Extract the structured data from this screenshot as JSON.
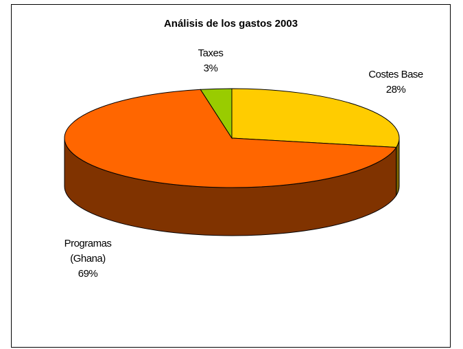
{
  "chart_data": {
    "type": "pie",
    "title": "Análisis de los gastos 2003",
    "slices": [
      {
        "label": "Costes Base",
        "label_lines": [
          "Costes Base"
        ],
        "percent_label": "28%",
        "value": 28,
        "color": "#FFCC00",
        "side_color": "#7F6600"
      },
      {
        "label": "Programas (Ghana)",
        "label_lines": [
          "Programas",
          "(Ghana)"
        ],
        "percent_label": "69%",
        "value": 69,
        "color": "#FF6600",
        "side_color": "#803300"
      },
      {
        "label": "Taxes",
        "label_lines": [
          "Taxes"
        ],
        "percent_label": "3%",
        "value": 3,
        "color": "#99CC00",
        "side_color": "#4D6600"
      }
    ],
    "three_d": true,
    "legend": "none"
  }
}
